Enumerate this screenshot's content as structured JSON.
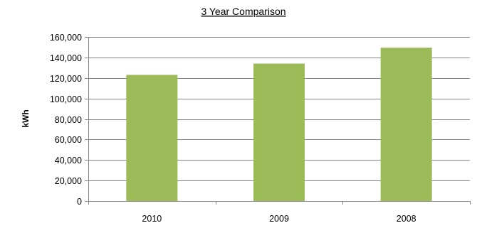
{
  "chart_data": {
    "type": "bar",
    "title": "3 Year Comparison",
    "xlabel": "",
    "ylabel": "kWh",
    "categories": [
      "2010",
      "2009",
      "2008"
    ],
    "values": [
      123000,
      134000,
      149500
    ],
    "ylim": [
      0,
      160000
    ],
    "y_ticks": [
      0,
      20000,
      40000,
      60000,
      80000,
      100000,
      120000,
      140000,
      160000
    ],
    "y_tick_labels": [
      "0",
      "20,000",
      "40,000",
      "60,000",
      "80,000",
      "100,000",
      "120,000",
      "140,000",
      "160,000"
    ],
    "grid": true,
    "legend": "none",
    "colors": {
      "bar": "#9BBB59",
      "grid": "#868686",
      "axis": "#868686"
    }
  }
}
